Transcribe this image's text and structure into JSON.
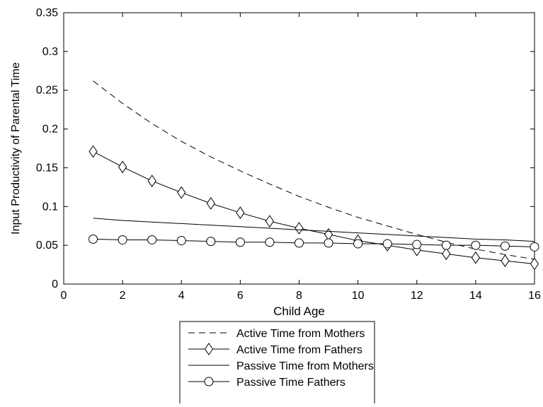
{
  "chart_data": {
    "type": "line",
    "title": "",
    "xlabel": "Child Age",
    "ylabel": "Input Productivity of Parental Time",
    "xlim": [
      0,
      16
    ],
    "ylim": [
      0,
      0.35
    ],
    "x_ticks": [
      0,
      2,
      4,
      6,
      8,
      10,
      12,
      14,
      16
    ],
    "x_tick_labels": [
      "0",
      "2",
      "4",
      "6",
      "8",
      "10",
      "12",
      "14",
      "16"
    ],
    "y_ticks": [
      0,
      0.05,
      0.1,
      0.15,
      0.2,
      0.25,
      0.3,
      0.35
    ],
    "y_tick_labels": [
      "0",
      "0.05",
      "0.1",
      "0.15",
      "0.2",
      "0.25",
      "0.3",
      "0.35"
    ],
    "grid": false,
    "legend_position": "bottom-center, outside plot",
    "x": [
      1,
      2,
      3,
      4,
      5,
      6,
      7,
      8,
      9,
      10,
      11,
      12,
      13,
      14,
      15,
      16
    ],
    "series": [
      {
        "name": "Active Time from Mothers",
        "line_style": "dashed",
        "marker": "none",
        "color": "#000000",
        "values": [
          0.262,
          0.233,
          0.207,
          0.184,
          0.164,
          0.146,
          0.129,
          0.113,
          0.099,
          0.086,
          0.075,
          0.064,
          0.054,
          0.045,
          0.038,
          0.032
        ]
      },
      {
        "name": "Active Time from Fathers",
        "line_style": "solid",
        "marker": "diamond",
        "color": "#000000",
        "values": [
          0.171,
          0.151,
          0.133,
          0.118,
          0.104,
          0.092,
          0.081,
          0.072,
          0.064,
          0.056,
          0.05,
          0.044,
          0.039,
          0.034,
          0.03,
          0.026
        ]
      },
      {
        "name": "Passive Time from Mothers",
        "line_style": "solid",
        "marker": "none",
        "color": "#000000",
        "values": [
          0.085,
          0.082,
          0.08,
          0.078,
          0.076,
          0.074,
          0.072,
          0.07,
          0.068,
          0.066,
          0.064,
          0.062,
          0.06,
          0.058,
          0.057,
          0.055
        ]
      },
      {
        "name": "Passive Time Fathers",
        "line_style": "solid",
        "marker": "circle",
        "color": "#000000",
        "values": [
          0.058,
          0.057,
          0.057,
          0.056,
          0.055,
          0.054,
          0.054,
          0.053,
          0.053,
          0.052,
          0.052,
          0.051,
          0.05,
          0.05,
          0.049,
          0.048
        ]
      }
    ]
  }
}
